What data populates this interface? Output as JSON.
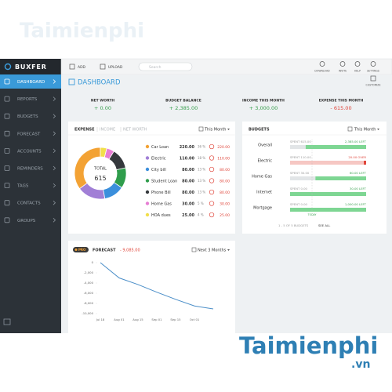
{
  "watermark": {
    "top": "Taimienphi",
    "brand": "Taimienphi",
    "tld": ".vn"
  },
  "topbar": {
    "logo": "BUXFER",
    "add": "ADD",
    "upload": "UPLOAD",
    "search_placeholder": "Search",
    "download": "DOWNLOAD",
    "invite": "INVITE",
    "help": "HELP",
    "settings": "SETTINGS"
  },
  "sidebar": {
    "items": [
      "DASHBOARD",
      "REPORTS",
      "BUDGETS",
      "FORECAST",
      "ACCOUNTS",
      "REMINDERS",
      "TAGS",
      "CONTACTS",
      "GROUPS"
    ],
    "active": 0
  },
  "header": {
    "title": "DASHBOARD",
    "customize": "CUSTOMIZE"
  },
  "summary": [
    {
      "label": "NET WORTH",
      "value": "+ 0.00",
      "tone": "positive"
    },
    {
      "label": "BUDGET BALANCE",
      "value": "+ 2,385.00",
      "tone": "positive"
    },
    {
      "label": "INCOME THIS MONTH",
      "value": "+ 3,000.00",
      "tone": "positive"
    },
    {
      "label": "EXPENSE THIS MONTH",
      "value": "- 615.00",
      "tone": "negative"
    }
  ],
  "expense": {
    "tabs": [
      "EXPENSE",
      "INCOME",
      "NET WORTH"
    ],
    "period": "This Month",
    "total_label": "TOTAL",
    "total": 615,
    "rows": [
      {
        "name": "Car Loan",
        "color": "#f3a234",
        "amount": 220,
        "amount_label": "220.00",
        "percent": "36 %",
        "budget": "220.00"
      },
      {
        "name": "Electric",
        "color": "#a17fd6",
        "amount": 110,
        "amount_label": "110.00",
        "percent": "18 %",
        "budget": "110.00"
      },
      {
        "name": "City bill",
        "color": "#3b8fdc",
        "amount": 80,
        "amount_label": "80.00",
        "percent": "13 %",
        "budget": "80.00"
      },
      {
        "name": "Student Loan",
        "color": "#2f9d4c",
        "amount": 80,
        "amount_label": "80.00",
        "percent": "13 %",
        "budget": "80.00"
      },
      {
        "name": "Phone Bill",
        "color": "#34383c",
        "amount": 80,
        "amount_label": "80.00",
        "percent": "13 %",
        "budget": "80.00"
      },
      {
        "name": "Home Gas",
        "color": "#e77ed4",
        "amount": 30,
        "amount_label": "30.00",
        "percent": "5 %",
        "budget": "30.00"
      },
      {
        "name": "HOA dues",
        "color": "#f2df4b",
        "amount": 25,
        "amount_label": "25.00",
        "percent": "4 %",
        "budget": "25.00"
      }
    ]
  },
  "budgets": {
    "title": "BUDGETS",
    "period": "This Month",
    "today": "TODAY",
    "footer": "1 - 5 OF 5 BUDGETS",
    "see_all": "SEE ALL",
    "rows": [
      {
        "name": "Overall",
        "spent": 615,
        "spent_label": "SPENT 615.00",
        "amount": 2385,
        "amount_label": "2,385.00 LEFT",
        "status": "left"
      },
      {
        "name": "Electric",
        "spent": 110,
        "spent_label": "SPENT 110.00",
        "amount": 20,
        "amount_label": "20.00 OVER",
        "status": "over"
      },
      {
        "name": "Home Gas",
        "spent": 30,
        "spent_label": "SPENT 30.00",
        "amount": 60,
        "amount_label": "60.00 LEFT",
        "status": "left"
      },
      {
        "name": "Internet",
        "spent": 0,
        "spent_label": "SPENT 0.00",
        "amount": 30,
        "amount_label": "30.00 LEFT",
        "status": "left"
      },
      {
        "name": "Mortgage",
        "spent": 0,
        "spent_label": "SPENT 0.00",
        "amount": 1000,
        "amount_label": "1,000.00 LEFT",
        "status": "left"
      }
    ]
  },
  "forecast": {
    "badge": "PRO",
    "title": "FORECAST",
    "total": "- 9,085.00",
    "period": "Next 3 Months",
    "chart": {
      "type": "line",
      "categories": [
        "Jul 18",
        "Aug 01",
        "Aug 15",
        "Sep 01",
        "Sep 15",
        "Oct 01",
        null
      ],
      "values": [
        0,
        -3000,
        -4300,
        -5800,
        -7200,
        -8500,
        -9085
      ],
      "color": "#4a8ec8",
      "ylim": [
        -10000,
        0
      ],
      "yticks": [
        {
          "value": -10000,
          "label": "-10,000"
        },
        {
          "value": -8000,
          "label": "-8,000"
        },
        {
          "value": -6000,
          "label": "-6,000"
        },
        {
          "value": -4000,
          "label": "-4,000"
        },
        {
          "value": -2000,
          "label": "-2,000"
        },
        0
      ],
      "grid": false
    }
  }
}
